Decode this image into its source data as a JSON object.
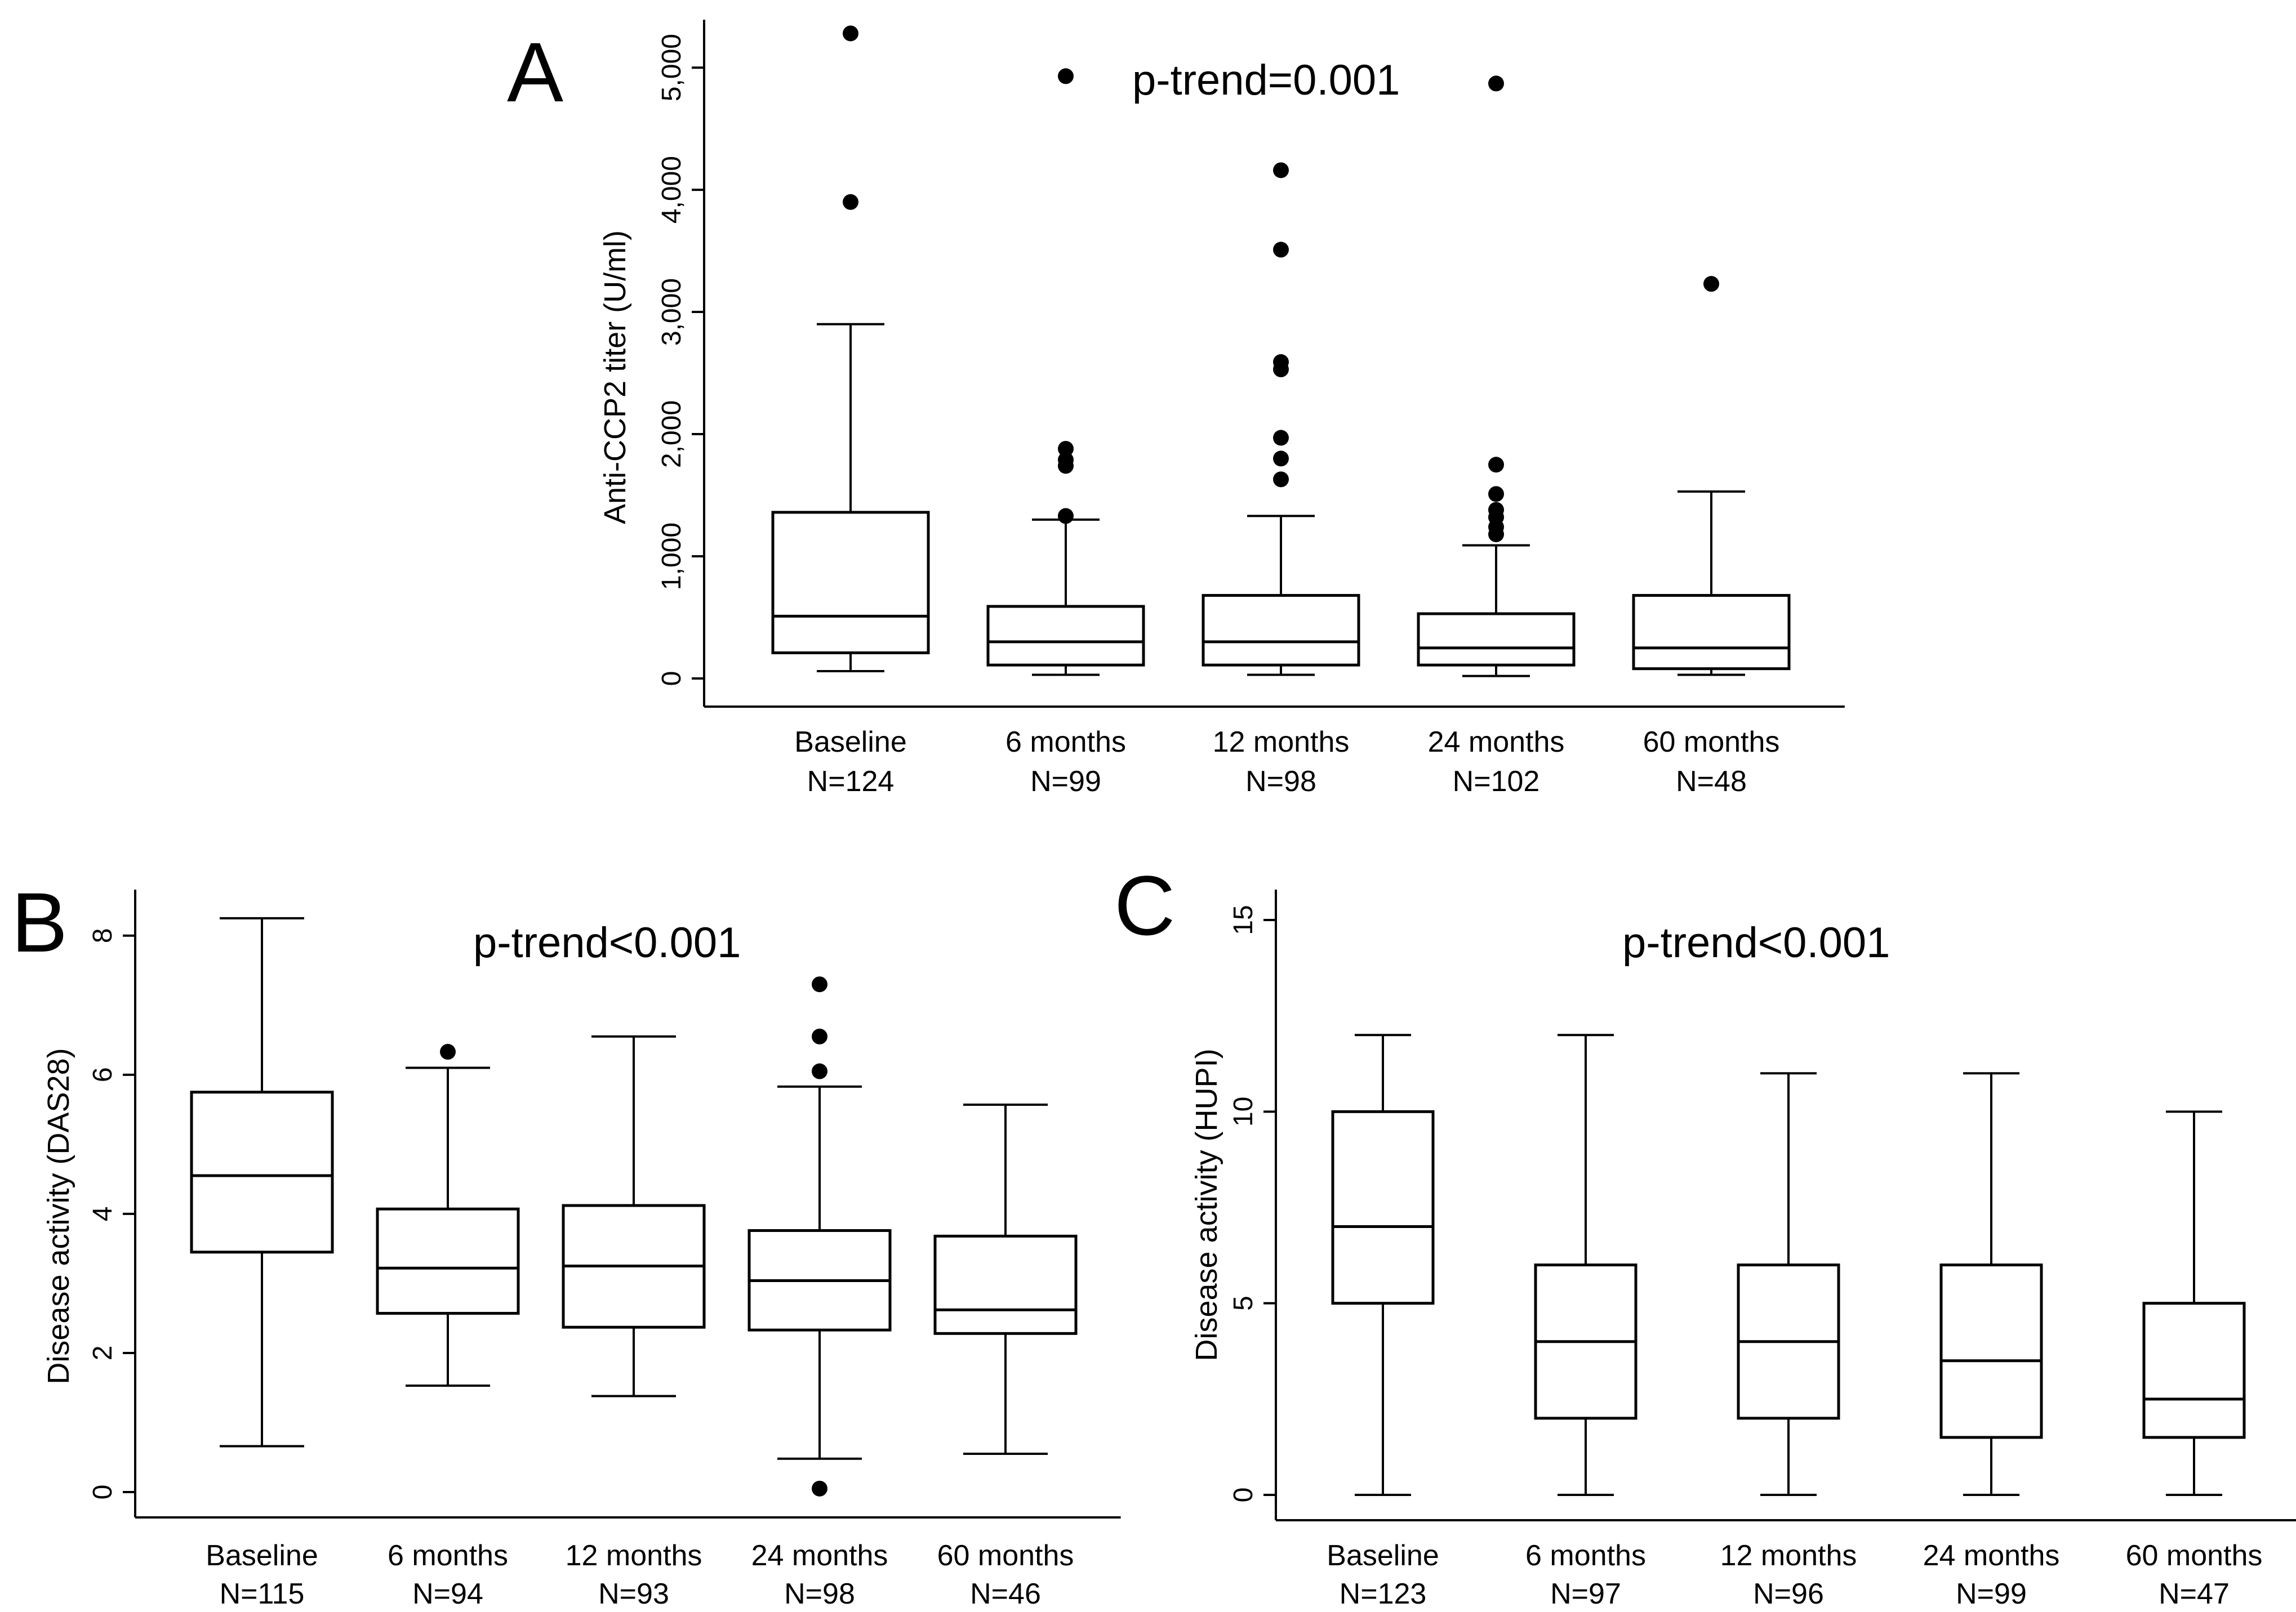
{
  "chart_data": [
    {
      "panel": "A",
      "type": "box",
      "annotation": "p-trend=0.001",
      "ylabel": "Anti-CCP2 titer (U/ml)",
      "xlabel": "",
      "ylim": [
        0,
        5300
      ],
      "yticks": [
        0,
        1000,
        2000,
        3000,
        4000,
        5000
      ],
      "ytick_labels": [
        "0",
        "1,000",
        "2,000",
        "3,000",
        "4,000",
        "5,000"
      ],
      "categories": [
        {
          "name": "Baseline",
          "n": "N=124",
          "whisker_low": 60,
          "q1": 210,
          "median": 510,
          "q3": 1360,
          "whisker_high": 2900,
          "outliers": [
            3900,
            5280
          ]
        },
        {
          "name": "6 months",
          "n": "N=99",
          "whisker_low": 30,
          "q1": 110,
          "median": 300,
          "q3": 590,
          "whisker_high": 1300,
          "outliers": [
            1330,
            1740,
            1790,
            1880,
            4930
          ]
        },
        {
          "name": "12 months",
          "n": "N=98",
          "whisker_low": 30,
          "q1": 110,
          "median": 300,
          "q3": 680,
          "whisker_high": 1330,
          "outliers": [
            1630,
            1800,
            1970,
            2530,
            2590,
            3510,
            4160
          ]
        },
        {
          "name": "24 months",
          "n": "N=102",
          "whisker_low": 20,
          "q1": 110,
          "median": 250,
          "q3": 530,
          "whisker_high": 1090,
          "outliers": [
            1180,
            1240,
            1320,
            1380,
            1510,
            1750,
            4870
          ]
        },
        {
          "name": "60 months",
          "n": "N=48",
          "whisker_low": 30,
          "q1": 80,
          "median": 250,
          "q3": 680,
          "whisker_high": 1530,
          "outliers": [
            3230
          ]
        }
      ]
    },
    {
      "panel": "B",
      "type": "box",
      "annotation": "p-trend<0.001",
      "ylabel": "Disease activity (DAS28)",
      "xlabel": "",
      "ylim": [
        0,
        8.5
      ],
      "yticks": [
        0,
        2,
        4,
        6,
        8
      ],
      "ytick_labels": [
        "0",
        "2",
        "4",
        "6",
        "8"
      ],
      "categories": [
        {
          "name": "Baseline",
          "n": "N=115",
          "whisker_low": 0.66,
          "q1": 3.45,
          "median": 4.55,
          "q3": 5.75,
          "whisker_high": 8.25,
          "outliers": []
        },
        {
          "name": "6 months",
          "n": "N=94",
          "whisker_low": 1.53,
          "q1": 2.57,
          "median": 3.22,
          "q3": 4.07,
          "whisker_high": 6.1,
          "outliers": [
            6.33
          ]
        },
        {
          "name": "12 months",
          "n": "N=93",
          "whisker_low": 1.38,
          "q1": 2.37,
          "median": 3.25,
          "q3": 4.12,
          "whisker_high": 6.55,
          "outliers": []
        },
        {
          "name": "24 months",
          "n": "N=98",
          "whisker_low": 0.48,
          "q1": 2.33,
          "median": 3.04,
          "q3": 3.76,
          "whisker_high": 5.83,
          "outliers": [
            0.05,
            6.05,
            6.55,
            7.3
          ]
        },
        {
          "name": "60 months",
          "n": "N=46",
          "whisker_low": 0.55,
          "q1": 2.28,
          "median": 2.62,
          "q3": 3.68,
          "whisker_high": 5.57,
          "outliers": []
        }
      ]
    },
    {
      "panel": "C",
      "type": "box",
      "annotation": "p-trend<0.001",
      "ylabel": "Disease activity (HUPI)",
      "xlabel": "",
      "ylim": [
        0,
        15.5
      ],
      "yticks": [
        0,
        5,
        10,
        15
      ],
      "ytick_labels": [
        "0",
        "5",
        "10",
        "15"
      ],
      "categories": [
        {
          "name": "Baseline",
          "n": "N=123",
          "whisker_low": 0,
          "q1": 5,
          "median": 7,
          "q3": 10,
          "whisker_high": 12,
          "outliers": []
        },
        {
          "name": "6 months",
          "n": "N=97",
          "whisker_low": 0,
          "q1": 2,
          "median": 4,
          "q3": 6,
          "whisker_high": 12,
          "outliers": []
        },
        {
          "name": "12 months",
          "n": "N=96",
          "whisker_low": 0,
          "q1": 2,
          "median": 4,
          "q3": 6,
          "whisker_high": 11,
          "outliers": []
        },
        {
          "name": "24 months",
          "n": "N=99",
          "whisker_low": 0,
          "q1": 1.5,
          "median": 3.5,
          "q3": 6,
          "whisker_high": 11,
          "outliers": []
        },
        {
          "name": "60 months",
          "n": "N=47",
          "whisker_low": 0,
          "q1": 1.5,
          "median": 2.5,
          "q3": 5,
          "whisker_high": 10,
          "outliers": []
        }
      ]
    }
  ]
}
